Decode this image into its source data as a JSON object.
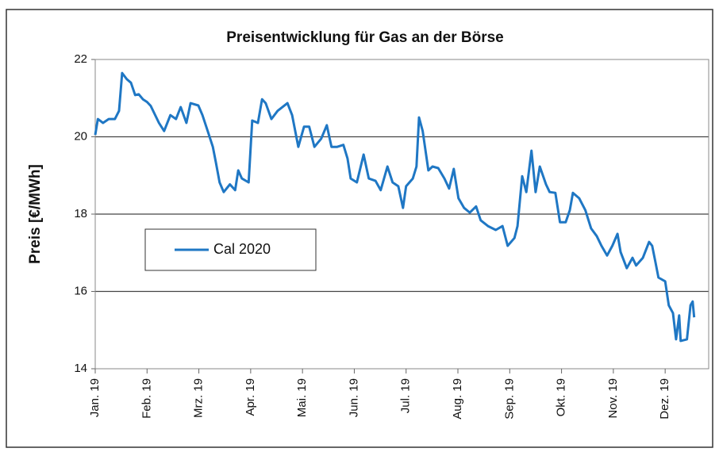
{
  "chart_data": {
    "type": "line",
    "title": "Preisentwicklung für Gas an der Börse",
    "y_label": "Preis [€/MWh]",
    "x": [
      0,
      0.05,
      0.15,
      0.26,
      0.38,
      0.46,
      0.52,
      0.61,
      0.69,
      0.77,
      0.84,
      0.92,
      1.0,
      1.07,
      1.23,
      1.33,
      1.45,
      1.56,
      1.65,
      1.76,
      1.84,
      1.99,
      2.07,
      2.17,
      2.27,
      2.33,
      2.4,
      2.48,
      2.6,
      2.7,
      2.76,
      2.83,
      2.96,
      3.03,
      3.14,
      3.22,
      3.29,
      3.4,
      3.52,
      3.71,
      3.8,
      3.92,
      4.03,
      4.13,
      4.23,
      4.36,
      4.47,
      4.56,
      4.67,
      4.79,
      4.87,
      4.93,
      5.05,
      5.18,
      5.28,
      5.41,
      5.51,
      5.64,
      5.74,
      5.85,
      5.94,
      6.0,
      6.13,
      6.2,
      6.25,
      6.32,
      6.43,
      6.51,
      6.62,
      6.74,
      6.83,
      6.92,
      7.01,
      7.12,
      7.23,
      7.35,
      7.44,
      7.58,
      7.73,
      7.86,
      7.96,
      8.09,
      8.15,
      8.24,
      8.32,
      8.42,
      8.5,
      8.58,
      8.7,
      8.77,
      8.88,
      8.97,
      9.08,
      9.16,
      9.22,
      9.34,
      9.46,
      9.57,
      9.68,
      9.77,
      9.88,
      9.98,
      10.08,
      10.14,
      10.26,
      10.37,
      10.44,
      10.57,
      10.69,
      10.75,
      10.81,
      10.87,
      11.0,
      11.07,
      11.15,
      11.21,
      11.27,
      11.3,
      11.42,
      11.49,
      11.53,
      11.56
    ],
    "series": [
      {
        "name": "Cal 2020",
        "color": "#1f77c4",
        "values": [
          20.05,
          20.46,
          20.36,
          20.46,
          20.46,
          20.67,
          21.65,
          21.49,
          21.4,
          21.08,
          21.1,
          20.97,
          20.9,
          20.8,
          20.36,
          20.15,
          20.56,
          20.46,
          20.77,
          20.36,
          20.87,
          20.81,
          20.56,
          20.15,
          19.74,
          19.33,
          18.82,
          18.57,
          18.77,
          18.62,
          19.13,
          18.92,
          18.82,
          20.42,
          20.36,
          20.97,
          20.87,
          20.46,
          20.67,
          20.87,
          20.56,
          19.74,
          20.26,
          20.26,
          19.74,
          19.95,
          20.3,
          19.74,
          19.74,
          19.79,
          19.44,
          18.92,
          18.82,
          19.54,
          18.92,
          18.86,
          18.62,
          19.23,
          18.82,
          18.72,
          18.16,
          18.72,
          18.92,
          19.23,
          20.5,
          20.15,
          19.13,
          19.23,
          19.19,
          18.92,
          18.66,
          19.17,
          18.41,
          18.16,
          18.04,
          18.2,
          17.84,
          17.69,
          17.59,
          17.69,
          17.18,
          17.38,
          17.69,
          18.98,
          18.57,
          19.64,
          18.57,
          19.23,
          18.77,
          18.57,
          18.55,
          17.79,
          17.79,
          18.1,
          18.55,
          18.41,
          18.1,
          17.63,
          17.43,
          17.18,
          16.93,
          17.18,
          17.49,
          17.02,
          16.6,
          16.87,
          16.67,
          16.87,
          17.28,
          17.18,
          16.77,
          16.36,
          16.26,
          15.64,
          15.44,
          14.76,
          15.38,
          14.72,
          14.76,
          15.64,
          15.74,
          15.33
        ]
      }
    ],
    "xlim": [
      0,
      11.84
    ],
    "xticks": [
      {
        "value": 0,
        "label": "Jan. 19"
      },
      {
        "value": 1,
        "label": "Feb. 19"
      },
      {
        "value": 2,
        "label": "Mrz. 19"
      },
      {
        "value": 3,
        "label": "Apr. 19"
      },
      {
        "value": 4,
        "label": "Mai. 19"
      },
      {
        "value": 5,
        "label": "Jun. 19"
      },
      {
        "value": 6,
        "label": "Jul. 19"
      },
      {
        "value": 7,
        "label": "Aug. 19"
      },
      {
        "value": 8,
        "label": "Sep. 19"
      },
      {
        "value": 9,
        "label": "Okt. 19"
      },
      {
        "value": 10,
        "label": "Nov. 19"
      },
      {
        "value": 11,
        "label": "Dez. 19"
      }
    ],
    "ylim": [
      14,
      22
    ],
    "yticks": [
      14,
      16,
      18,
      20,
      22
    ],
    "grid": true,
    "legend": "center-left"
  }
}
